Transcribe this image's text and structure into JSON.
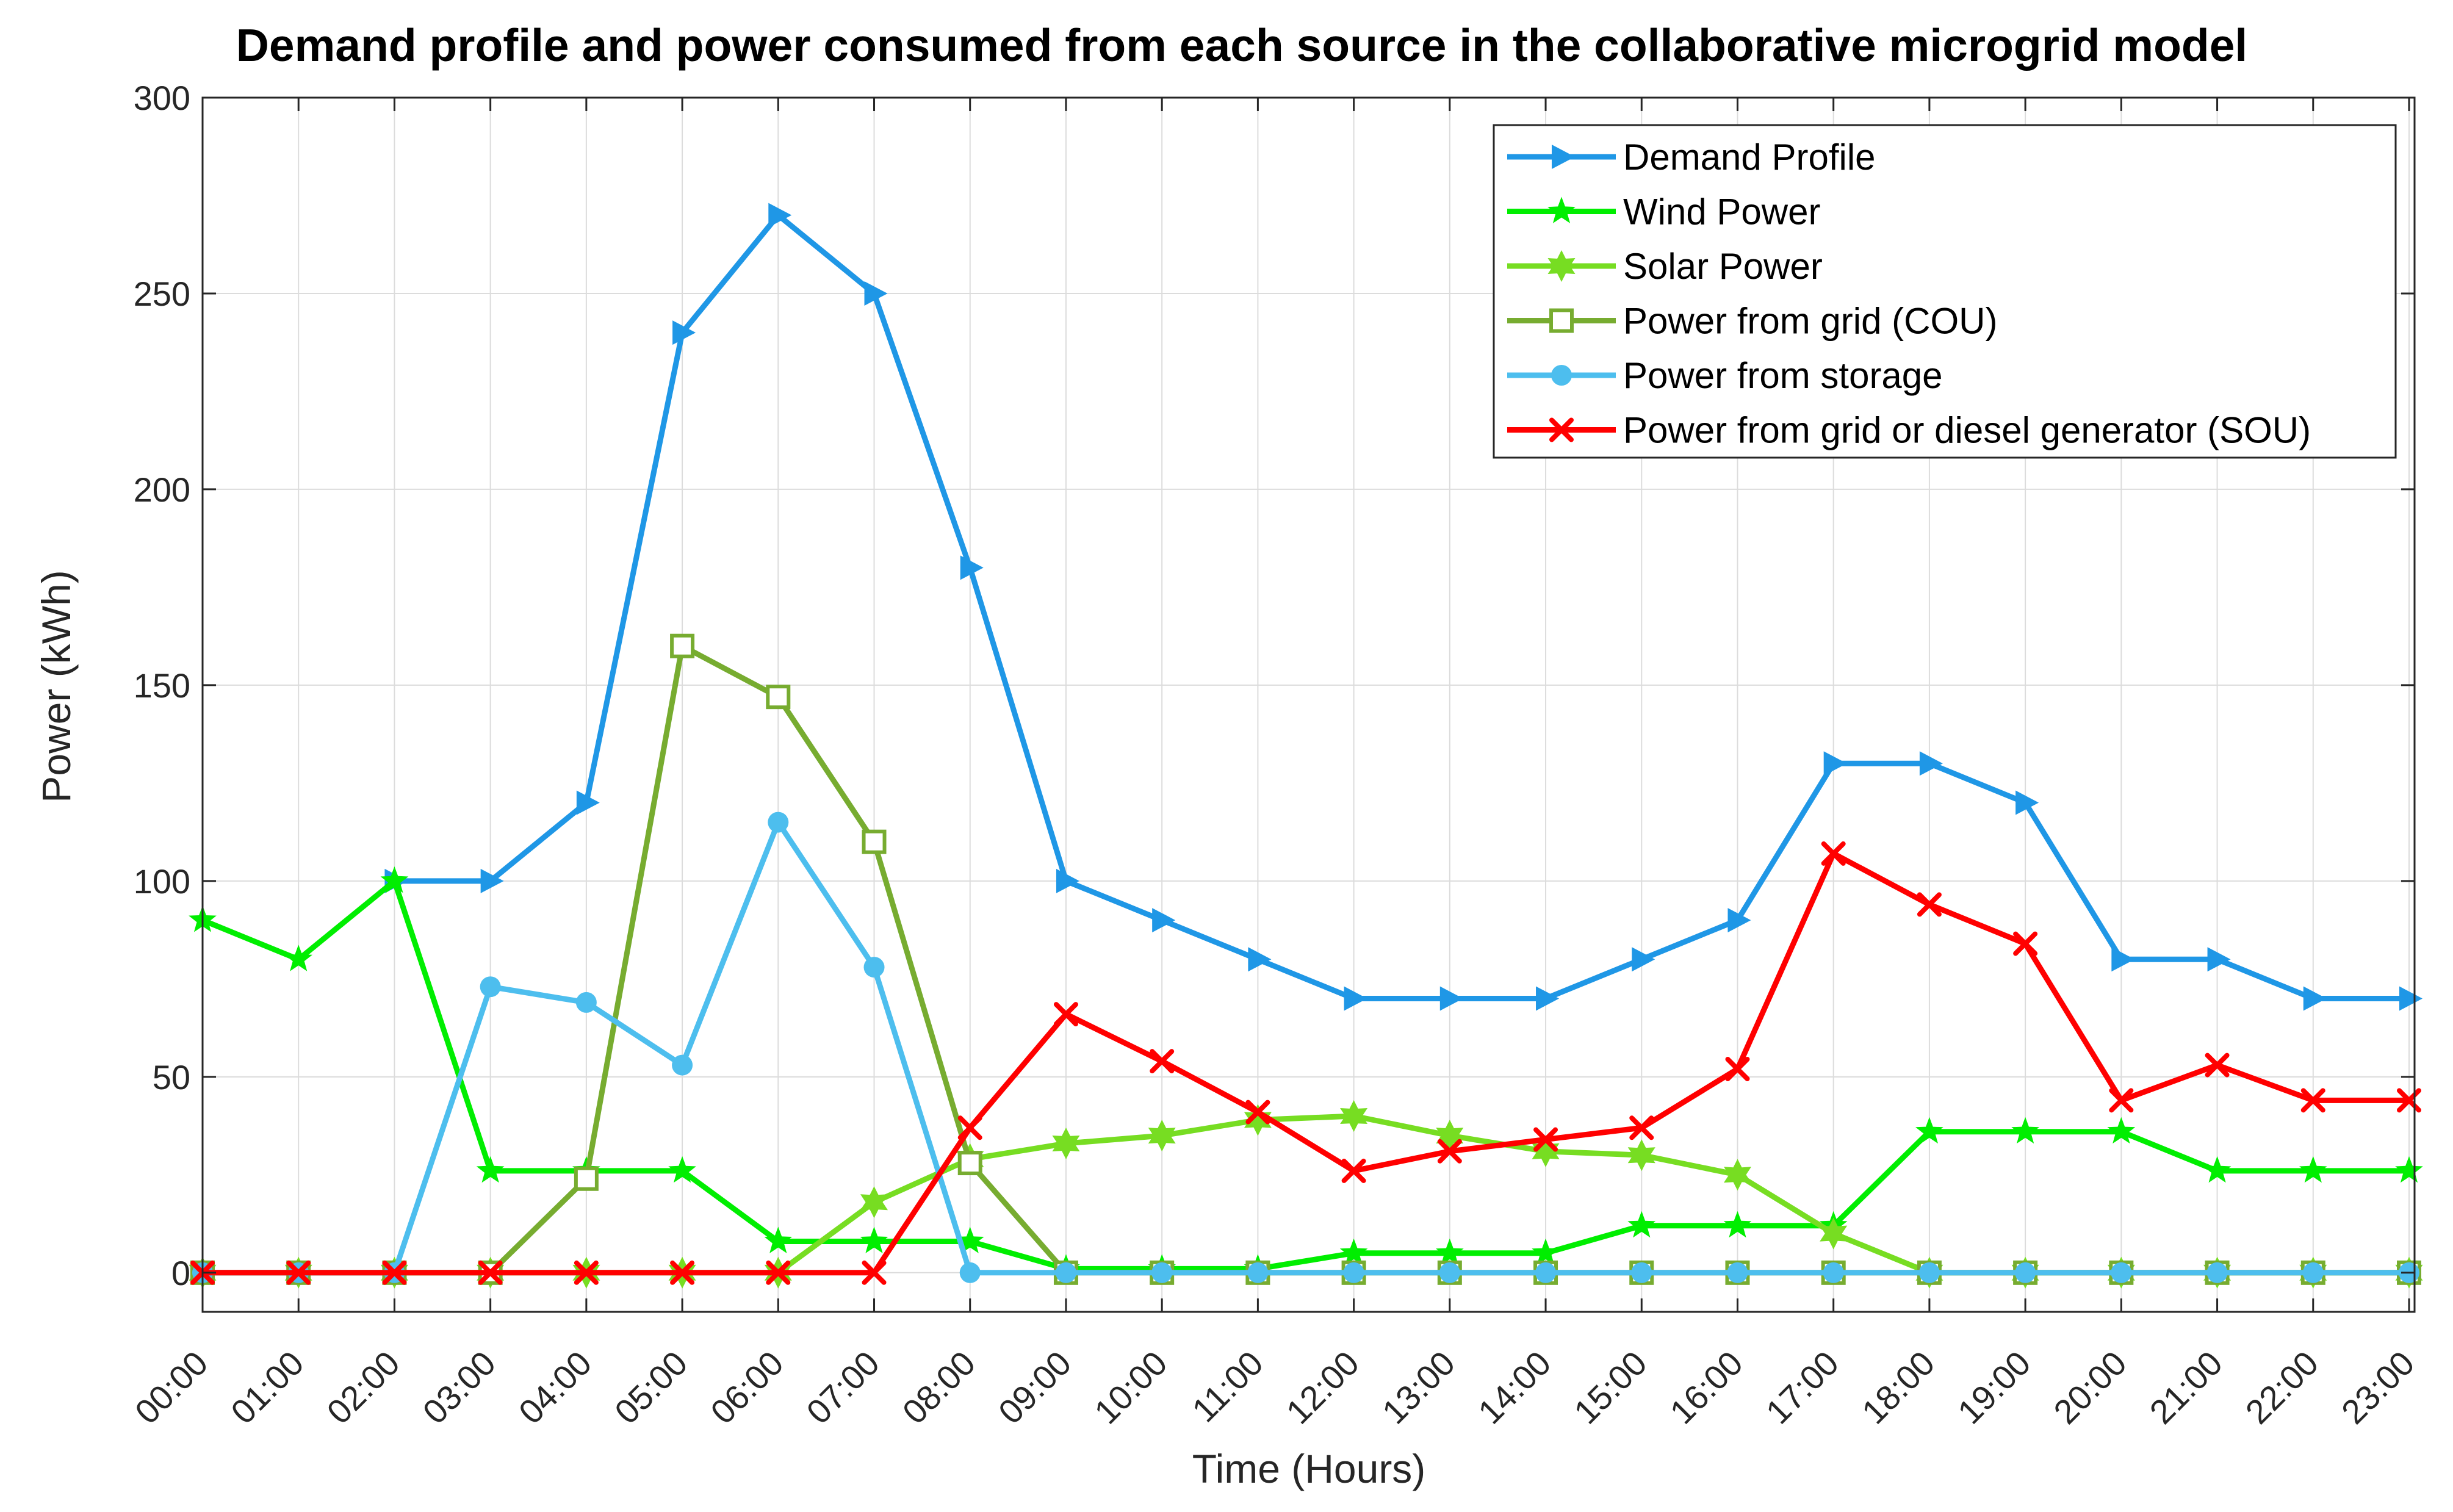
{
  "chart_data": {
    "type": "line",
    "title": "Demand profile and power consumed from each source in the collaborative microgrid model",
    "xlabel": "Time (Hours)",
    "ylabel": "Power (kWh)",
    "ylim": [
      -10,
      300
    ],
    "yticks": [
      0,
      50,
      100,
      150,
      200,
      250,
      300
    ],
    "grid": true,
    "legend_position": "top-right",
    "categories": [
      "00:00",
      "01:00",
      "02:00",
      "03:00",
      "04:00",
      "05:00",
      "06:00",
      "07:00",
      "08:00",
      "09:00",
      "10:00",
      "11:00",
      "12:00",
      "13:00",
      "14:00",
      "15:00",
      "16:00",
      "17:00",
      "18:00",
      "19:00",
      "20:00",
      "21:00",
      "22:00",
      "23:00"
    ],
    "series": [
      {
        "name": "Demand Profile",
        "color": "#1f97e6",
        "marker": "triangle-right",
        "values": [
          null,
          null,
          100,
          100,
          120,
          240,
          270,
          250,
          180,
          100,
          90,
          80,
          70,
          70,
          70,
          80,
          90,
          130,
          130,
          120,
          80,
          80,
          70,
          70
        ]
      },
      {
        "name": "Wind Power",
        "color": "#00ee00",
        "marker": "pentagram",
        "values": [
          90,
          80,
          100,
          26,
          26,
          26,
          8,
          8,
          8,
          1,
          1,
          1,
          5,
          5,
          5,
          12,
          12,
          12,
          36,
          36,
          36,
          26,
          26,
          26
        ]
      },
      {
        "name": "Solar Power",
        "color": "#77dd22",
        "marker": "hexagram",
        "values": [
          0,
          0,
          0,
          0,
          0,
          0,
          0,
          18,
          29,
          33,
          35,
          39,
          40,
          35,
          31,
          30,
          25,
          10,
          0,
          0,
          0,
          0,
          0,
          0
        ]
      },
      {
        "name": "Power from grid (COU)",
        "color": "#77ac30",
        "marker": "square",
        "values": [
          0,
          0,
          0,
          0,
          24,
          160,
          147,
          110,
          28,
          0,
          0,
          0,
          0,
          0,
          0,
          0,
          0,
          0,
          0,
          0,
          0,
          0,
          0,
          0
        ]
      },
      {
        "name": "Power from storage",
        "color": "#4dbeee",
        "marker": "circle",
        "values": [
          0,
          0,
          0,
          73,
          69,
          53,
          115,
          78,
          0,
          0,
          0,
          0,
          0,
          0,
          0,
          0,
          0,
          0,
          0,
          0,
          0,
          0,
          0,
          0
        ]
      },
      {
        "name": "Power from grid or diesel generator (SOU)",
        "color": "#ff0000",
        "marker": "x",
        "values": [
          0,
          0,
          0,
          0,
          0,
          0,
          0,
          0,
          37,
          66,
          54,
          41,
          26,
          31,
          34,
          37,
          52,
          107,
          94,
          84,
          44,
          53,
          44,
          44
        ]
      }
    ]
  }
}
